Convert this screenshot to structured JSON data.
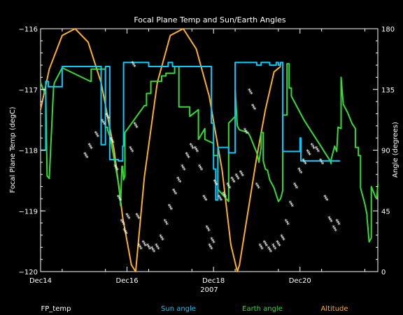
{
  "chart_data": {
    "type": "line",
    "title": "Focal Plane Temp and Sun/Earth Angles",
    "xlabel": "2007",
    "ylabel": "Focal Plane Temp (degC)",
    "y2label": "Angle (degrees)",
    "grid": false,
    "legend": "bottom",
    "x_ticks": [
      14,
      16,
      18,
      20
    ],
    "x_tick_labels": [
      "Dec14",
      "Dec16",
      "Dec18",
      "Dec20"
    ],
    "xlim": [
      14,
      21.8
    ],
    "ylim": [
      -120,
      -116
    ],
    "y_ticks": [
      -120,
      -119,
      -118,
      -117,
      -116
    ],
    "y_tick_labels": [
      "−120",
      "−119",
      "−118",
      "−117",
      "−116"
    ],
    "y2lim": [
      0,
      180
    ],
    "y2_ticks": [
      0,
      45,
      90,
      135,
      180
    ],
    "y2_tick_labels": [
      "0",
      "45",
      "90",
      "135",
      "180"
    ],
    "series": [
      {
        "name": "FP_temp",
        "axis": "left",
        "style": "star",
        "color": "#ffffff",
        "x": [
          15.05,
          15.15,
          15.3,
          15.45,
          15.55,
          15.65,
          15.75,
          15.82,
          15.9,
          15.96,
          16.02,
          16.1,
          16.15,
          16.2,
          16.25,
          16.3,
          16.4,
          16.5,
          16.6,
          16.7,
          16.8,
          16.9,
          17.0,
          17.1,
          17.2,
          17.3,
          17.4,
          17.5,
          17.6,
          17.7,
          17.8,
          17.87,
          17.93,
          17.98,
          18.05,
          18.15,
          18.25,
          18.35,
          18.45,
          18.55,
          18.65,
          18.75,
          18.85,
          18.93,
          19.02,
          19.1,
          19.2,
          19.3,
          19.4,
          19.5,
          19.6,
          19.7,
          19.8,
          19.9,
          20.0,
          20.1,
          20.2,
          20.3,
          20.4,
          20.5,
          20.6,
          20.7,
          20.8,
          20.88
        ],
        "values": [
          -118.1,
          -117.95,
          -117.75,
          -117.55,
          -117.45,
          -117.85,
          -118.3,
          -118.8,
          -119.2,
          -119.35,
          -119.1,
          -118.0,
          -116.6,
          -117.6,
          -119.1,
          -119.6,
          -119.55,
          -119.6,
          -119.65,
          -119.6,
          -119.45,
          -119.2,
          -118.95,
          -118.7,
          -118.5,
          -118.3,
          -118.1,
          -117.95,
          -118.0,
          -118.3,
          -118.8,
          -119.3,
          -119.6,
          -119.5,
          -118.55,
          -118.8,
          -118.75,
          -118.6,
          -118.5,
          -118.45,
          -118.4,
          -117.7,
          -117.05,
          -117.3,
          -118.6,
          -119.6,
          -119.55,
          -119.65,
          -119.6,
          -119.55,
          -119.45,
          -119.2,
          -118.9,
          -118.6,
          -118.35,
          -118.2,
          -118.05,
          -117.95,
          -118.0,
          -118.2,
          -118.8,
          -119.15,
          -119.3,
          -119.2
        ]
      },
      {
        "name": "Sun angle",
        "axis": "right",
        "style": "line",
        "color": "#00ccff",
        "x": [
          14.0,
          14.12,
          14.12,
          14.18,
          14.18,
          14.5,
          14.5,
          14.65,
          14.65,
          15.4,
          15.4,
          15.5,
          15.5,
          15.6,
          15.6,
          15.8,
          15.8,
          15.9,
          15.9,
          15.92,
          15.92,
          16.5,
          16.5,
          16.95,
          16.95,
          17.05,
          17.05,
          17.95,
          17.95,
          18.0,
          18.0,
          18.05,
          18.05,
          18.1,
          18.1,
          18.35,
          18.35,
          18.5,
          18.5,
          19.0,
          19.0,
          19.1,
          19.1,
          19.3,
          19.3,
          19.45,
          19.45,
          19.5,
          19.5,
          19.55,
          19.55,
          19.6,
          19.6,
          20.0,
          20.0,
          20.02,
          20.02,
          20.5,
          20.5,
          20.92
        ],
        "values": [
          90,
          90,
          141,
          141,
          137,
          137,
          152,
          152,
          152,
          152,
          94,
          94,
          152,
          152,
          83,
          83,
          82,
          82,
          93,
          93,
          155,
          155,
          152,
          152,
          155,
          155,
          152,
          152,
          110,
          110,
          76,
          76,
          53,
          53,
          92,
          92,
          88,
          88,
          155,
          155,
          153,
          153,
          155,
          155,
          153,
          153,
          155,
          155,
          153,
          153,
          155,
          155,
          89,
          89,
          99,
          99,
          82,
          82,
          82,
          82
        ]
      },
      {
        "name": "Earth angle",
        "axis": "right",
        "style": "line",
        "color": "#33dd33",
        "x": [
          14.0,
          14.1,
          14.12,
          14.15,
          14.15,
          14.2,
          14.2,
          14.3,
          14.3,
          14.32,
          14.32,
          14.5,
          14.5,
          15.15,
          15.17,
          15.17,
          15.5,
          15.5,
          15.55,
          15.55,
          15.62,
          15.72,
          15.82,
          15.85,
          15.88,
          15.9,
          15.92,
          15.95,
          15.95,
          16.4,
          16.4,
          16.45,
          16.45,
          16.55,
          16.55,
          16.8,
          16.8,
          16.9,
          16.9,
          17.1,
          17.1,
          17.2,
          17.2,
          17.45,
          17.45,
          17.65,
          17.65,
          17.8,
          17.8,
          18.0,
          18.0,
          18.1,
          18.1,
          18.35,
          18.35,
          18.5,
          18.5,
          18.55,
          18.6,
          18.8,
          18.85,
          19.0,
          19.05,
          19.1,
          19.1,
          19.15,
          19.15,
          19.2,
          19.25,
          19.3,
          19.4,
          19.5,
          19.55,
          19.6,
          19.6,
          19.7,
          19.7,
          19.75,
          19.75,
          19.8,
          19.8,
          20.1,
          20.2,
          20.3,
          20.4,
          20.5,
          20.6,
          20.7,
          20.72,
          20.72,
          20.8,
          20.85,
          20.88,
          20.95,
          20.95,
          21.0,
          21.1,
          21.2,
          21.28,
          21.28,
          21.35,
          21.35,
          21.4,
          21.4,
          21.5,
          21.55,
          21.55,
          21.6,
          21.65,
          21.65,
          21.75,
          21.78,
          21.8
        ],
        "values": [
          140,
          132,
          132,
          71,
          71,
          69,
          69,
          136,
          136,
          140,
          140,
          151,
          151,
          141,
          141,
          150,
          150,
          107,
          107,
          105,
          98,
          80,
          62,
          49,
          78,
          78,
          68,
          71,
          103,
          123,
          123,
          123,
          132,
          132,
          141,
          141,
          145,
          145,
          147,
          147,
          152,
          152,
          122,
          122,
          115,
          120,
          98,
          106,
          98,
          95,
          86,
          86,
          61,
          52,
          110,
          115,
          135,
          108,
          105,
          103,
          100,
          88,
          81,
          92,
          103,
          103,
          82,
          76,
          75,
          68,
          62,
          52,
          54,
          60,
          116,
          116,
          154,
          154,
          136,
          136,
          130,
          112,
          107,
          102,
          97,
          92,
          87,
          82,
          80,
          83,
          93,
          89,
          107,
          106,
          144,
          124,
          118,
          110,
          106,
          92,
          92,
          86,
          86,
          62,
          50,
          42,
          40,
          22,
          25,
          63,
          55,
          55,
          65
        ]
      },
      {
        "name": "Altitude",
        "axis": "right",
        "style": "line",
        "color": "#ffb020",
        "x": [
          14.0,
          14.2,
          14.5,
          14.8,
          15.1,
          15.4,
          15.7,
          15.9,
          16.1,
          16.2,
          16.4,
          16.7,
          17.0,
          17.3,
          17.6,
          17.9,
          18.2,
          18.4,
          18.55,
          18.6,
          18.8,
          19.0,
          19.2,
          19.4,
          19.55
        ],
        "values": [
          120,
          150,
          175,
          180,
          170,
          140,
          90,
          40,
          5,
          0,
          70,
          140,
          175,
          180,
          165,
          130,
          75,
          20,
          0,
          5,
          45,
          85,
          120,
          148,
          152
        ]
      }
    ]
  },
  "legend": {
    "items": [
      {
        "label": "FP_temp",
        "color": "#ffffff"
      },
      {
        "label": "Sun angle",
        "color": "#00ccff"
      },
      {
        "label": "Earth angle",
        "color": "#33dd33"
      },
      {
        "label": "Altitude",
        "color": "#ffb020"
      }
    ]
  }
}
